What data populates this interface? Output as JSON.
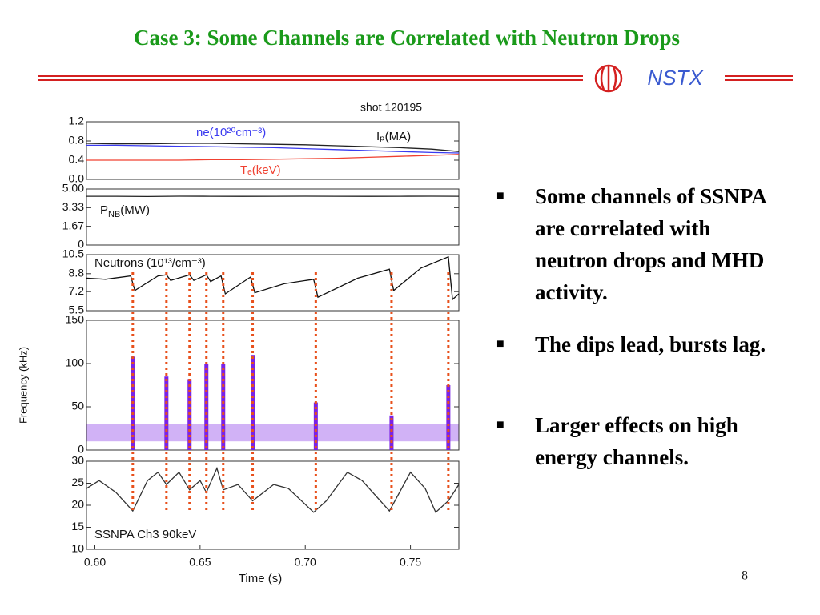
{
  "title": "Case 3: Some Channels are Correlated with Neutron Drops",
  "logo_text": "NSTX",
  "bullets": [
    "Some channels of SSNPA are correlated with neutron drops and MHD activity.",
    "The dips lead, bursts lag.",
    "Larger effects on high energy channels."
  ],
  "page_number": "8",
  "dip_times": [
    0.618,
    0.634,
    0.645,
    0.653,
    0.661,
    0.675,
    0.705,
    0.741,
    0.768
  ],
  "chart_data": [
    {
      "type": "line",
      "annotation": "shot 120195",
      "xlim": [
        0.596,
        0.773
      ],
      "ylim": [
        0,
        1.2
      ],
      "yticks": [
        {
          "value": 0,
          "label": "0.0"
        },
        0.4,
        0.8,
        1.2
      ],
      "x": [
        0.596,
        0.61,
        0.625,
        0.64,
        0.655,
        0.67,
        0.685,
        0.7,
        0.715,
        0.73,
        0.745,
        0.76,
        0.773
      ],
      "series": [
        {
          "name": "ne(10²⁰cm⁻³)",
          "color": "#3a3af0",
          "values": [
            0.71,
            0.71,
            0.7,
            0.69,
            0.68,
            0.67,
            0.66,
            0.64,
            0.62,
            0.6,
            0.58,
            0.56,
            0.55
          ]
        },
        {
          "name": "Iₚ(MA)",
          "color": "#222222",
          "values": [
            0.75,
            0.74,
            0.74,
            0.75,
            0.75,
            0.74,
            0.73,
            0.72,
            0.7,
            0.68,
            0.66,
            0.63,
            0.58
          ]
        },
        {
          "name": "Tₑ(keV)",
          "color": "#f04030",
          "values": [
            0.4,
            0.4,
            0.4,
            0.4,
            0.41,
            0.41,
            0.42,
            0.43,
            0.44,
            0.46,
            0.48,
            0.5,
            0.52
          ]
        }
      ]
    },
    {
      "type": "line",
      "xlim": [
        0.596,
        0.773
      ],
      "ylim": [
        0,
        5
      ],
      "yticks": [
        0,
        1.67,
        3.33,
        {
          "value": 5,
          "label": "5.00"
        }
      ],
      "x": [
        0.596,
        0.61,
        0.625,
        0.64,
        0.655,
        0.67,
        0.685,
        0.7,
        0.715,
        0.73,
        0.745,
        0.76,
        0.773
      ],
      "series": [
        {
          "name": "P",
          "name_sub": "NB",
          "name_suffix": "(MW)",
          "color": "#222222",
          "values": [
            4.35,
            4.35,
            4.33,
            4.36,
            4.35,
            4.34,
            4.35,
            4.36,
            4.35,
            4.34,
            4.35,
            4.36,
            4.35
          ]
        }
      ]
    },
    {
      "type": "line",
      "xlim": [
        0.596,
        0.773
      ],
      "ylim": [
        5.5,
        10.5
      ],
      "yticks": [
        5.5,
        7.2,
        8.8,
        10.5
      ],
      "x": [
        0.596,
        0.605,
        0.617,
        0.619,
        0.63,
        0.634,
        0.636,
        0.645,
        0.647,
        0.653,
        0.655,
        0.66,
        0.662,
        0.674,
        0.676,
        0.69,
        0.704,
        0.706,
        0.725,
        0.74,
        0.742,
        0.755,
        0.768,
        0.77,
        0.773
      ],
      "series": [
        {
          "name": "Neutrons (10¹³/cm⁻³)",
          "color": "#111111",
          "values": [
            8.4,
            8.3,
            8.6,
            7.3,
            8.6,
            8.7,
            8.2,
            8.7,
            8.2,
            8.7,
            8.1,
            8.6,
            7.0,
            8.5,
            7.1,
            7.9,
            8.3,
            6.7,
            8.4,
            9.2,
            7.3,
            9.3,
            10.3,
            6.5,
            7.0
          ]
        }
      ]
    },
    {
      "type": "bar",
      "ylabel": "Frequency (kHz)",
      "xlim": [
        0.596,
        0.773
      ],
      "ylim": [
        0,
        150
      ],
      "yticks": [
        0,
        50,
        100,
        150
      ],
      "color": "#7a22e6",
      "x": [
        0.618,
        0.634,
        0.645,
        0.653,
        0.661,
        0.675,
        0.705,
        0.741,
        0.768
      ],
      "values": [
        108,
        85,
        82,
        100,
        100,
        110,
        55,
        40,
        75
      ]
    },
    {
      "type": "line",
      "annotation": "SSNPA Ch3 90keV",
      "xlabel": "Time (s)",
      "xlim": [
        0.596,
        0.773
      ],
      "ylim": [
        10,
        30
      ],
      "yticks": [
        10,
        15,
        20,
        25,
        30
      ],
      "xticks": [
        {
          "value": 0.6,
          "label": "0.60"
        },
        0.65,
        {
          "value": 0.7,
          "label": "0.70"
        },
        0.75
      ],
      "x": [
        0.596,
        0.602,
        0.61,
        0.618,
        0.625,
        0.63,
        0.634,
        0.64,
        0.645,
        0.65,
        0.653,
        0.658,
        0.661,
        0.668,
        0.675,
        0.685,
        0.692,
        0.704,
        0.71,
        0.72,
        0.727,
        0.74,
        0.75,
        0.757,
        0.762,
        0.768,
        0.773
      ],
      "series": [
        {
          "color": "#333333",
          "values": [
            23.8,
            25.6,
            22.9,
            18.7,
            25.6,
            27.5,
            24.7,
            27.5,
            23.5,
            25.6,
            22.9,
            28.4,
            23.5,
            24.7,
            21,
            24.7,
            23.8,
            18.4,
            21,
            27.5,
            25.6,
            18.7,
            27.5,
            23.8,
            18.4,
            21,
            24.7
          ]
        }
      ]
    }
  ]
}
